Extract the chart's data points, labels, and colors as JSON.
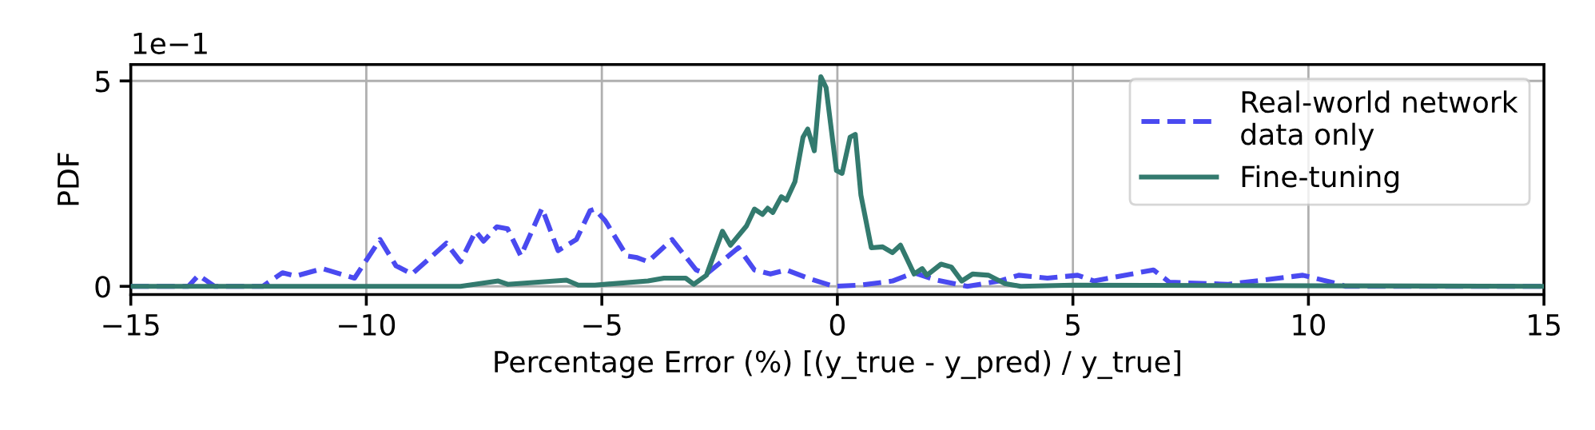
{
  "chart_data": {
    "type": "line",
    "xlabel": "Percentage Error (%) [(y_true - y_pred) / y_true]",
    "ylabel": "PDF",
    "annotations": [
      "1e−1"
    ],
    "xlim": [
      -15,
      15
    ],
    "xticks": [
      {
        "value": -15,
        "label": "−15"
      },
      {
        "value": -10,
        "label": "−10"
      },
      {
        "value": -5,
        "label": "−5"
      },
      0,
      5,
      10,
      15
    ],
    "ylim": [
      -0.2,
      5.4
    ],
    "yticks": [
      0,
      5
    ],
    "grid": true,
    "legend": "top right",
    "series": [
      {
        "name": "Real-world network data only",
        "color": "#4a4af0",
        "line_style": "dashed",
        "x": [
          -15,
          -13.78,
          -13.56,
          -13.22,
          -12.2,
          -11.78,
          -11.5,
          -10.93,
          -10.25,
          -9.71,
          -9.37,
          -9.03,
          -8.3,
          -8.0,
          -7.68,
          -7.51,
          -7.23,
          -7.0,
          -6.72,
          -6.27,
          -5.93,
          -5.54,
          -5.25,
          -5.15,
          -4.93,
          -4.47,
          -4.25,
          -4.02,
          -3.51,
          -3.0,
          -2.78,
          -2.1,
          -1.76,
          -1.42,
          -1.08,
          -0.63,
          -0.07,
          0.5,
          1.17,
          1.63,
          2.08,
          2.76,
          3.44,
          3.85,
          4.46,
          5.1,
          5.45,
          6.71,
          7.05,
          8.3,
          9.88,
          10.67,
          10.78,
          15
        ],
        "values": [
          0,
          0,
          0.27,
          0,
          0,
          0.33,
          0.25,
          0.43,
          0.2,
          1.14,
          0.5,
          0.3,
          1.05,
          0.6,
          1.34,
          1.1,
          1.45,
          1.4,
          0.74,
          1.9,
          0.87,
          1.14,
          1.84,
          1.88,
          1.6,
          0.74,
          0.7,
          0.6,
          1.14,
          0.4,
          0.3,
          0.94,
          0.4,
          0.3,
          0.4,
          0.2,
          0,
          0.03,
          0.13,
          0.33,
          0.16,
          0,
          0.13,
          0.27,
          0.2,
          0.27,
          0.13,
          0.4,
          0.1,
          0.05,
          0.27,
          0.05,
          0,
          0
        ]
      },
      {
        "name": "Fine-tuning",
        "color": "#337a6e",
        "line_style": "solid",
        "x": [
          -15,
          -8.0,
          -7.2,
          -7.0,
          -5.75,
          -5.5,
          -5.15,
          -4.02,
          -3.68,
          -3.22,
          -3.05,
          -2.78,
          -2.44,
          -2.27,
          -1.93,
          -1.76,
          -1.59,
          -1.48,
          -1.37,
          -1.19,
          -1.08,
          -0.9,
          -0.73,
          -0.63,
          -0.49,
          -0.35,
          -0.24,
          -0.02,
          0.1,
          0.27,
          0.38,
          0.5,
          0.72,
          0.96,
          1.17,
          1.34,
          1.63,
          1.8,
          1.9,
          2.2,
          2.42,
          2.64,
          2.87,
          3.21,
          3.55,
          3.89,
          5,
          15
        ],
        "values": [
          0,
          0,
          0.13,
          0.05,
          0.15,
          0.03,
          0.03,
          0.13,
          0.2,
          0.2,
          0.05,
          0.27,
          1.34,
          1.0,
          1.47,
          1.88,
          1.75,
          1.9,
          1.8,
          2.18,
          2.1,
          2.55,
          3.63,
          3.83,
          3.3,
          5.1,
          4.84,
          2.82,
          2.75,
          3.63,
          3.7,
          2.22,
          0.94,
          0.96,
          0.82,
          1.0,
          0.3,
          0.43,
          0.27,
          0.54,
          0.47,
          0.13,
          0.3,
          0.27,
          0.07,
          0,
          0.03,
          0
        ]
      }
    ]
  }
}
